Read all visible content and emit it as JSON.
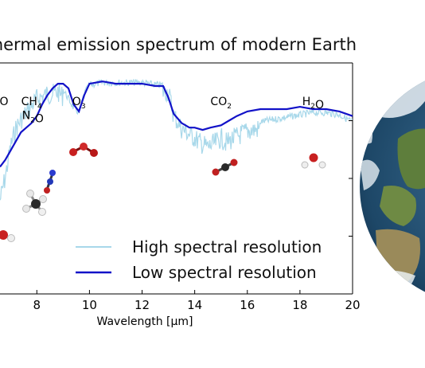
{
  "title": "Thermal emission spectrum of modern Earth",
  "chart_data": {
    "type": "line",
    "xlabel": "Wavelength [µm]",
    "ylabel": "",
    "xlim": [
      6.6,
      20
    ],
    "ylim": [
      0,
      1
    ],
    "xticks": [
      "8",
      "10",
      "12",
      "14",
      "16",
      "18",
      "20"
    ],
    "xtick_values": [
      8,
      10,
      12,
      14,
      16,
      18,
      20
    ],
    "grid": false,
    "legend_position": "bottom-right",
    "molecule_labels": [
      {
        "text": "O",
        "x": 6.75,
        "y": 0.9
      },
      {
        "text": "CH4",
        "x": 7.8,
        "y": 0.9
      },
      {
        "text": "N2O",
        "x": 7.85,
        "y": 0.84
      },
      {
        "text": "O3",
        "x": 9.6,
        "y": 0.9
      },
      {
        "text": "CO2",
        "x": 15.0,
        "y": 0.9
      },
      {
        "text": "H2O",
        "x": 18.5,
        "y": 0.9
      }
    ],
    "series": [
      {
        "name": "High spectral resolution",
        "color": "#a8d8ea",
        "x": [
          6.6,
          6.8,
          7.0,
          7.2,
          7.4,
          7.6,
          7.8,
          8.0,
          8.2,
          8.4,
          8.6,
          8.8,
          9.0,
          9.2,
          9.4,
          9.6,
          9.8,
          10.0,
          10.5,
          11.0,
          11.5,
          12.0,
          12.5,
          13.0,
          13.2,
          13.5,
          14.0,
          14.2,
          14.5,
          14.8,
          15.0,
          15.2,
          15.5,
          16.0,
          16.5,
          17.0,
          17.5,
          18.0,
          18.5,
          19.0,
          19.5,
          20.0
        ],
        "y": [
          0.45,
          0.55,
          0.68,
          0.76,
          0.8,
          0.83,
          0.86,
          0.89,
          0.9,
          0.91,
          0.91,
          0.92,
          0.9,
          0.86,
          0.82,
          0.8,
          0.88,
          0.92,
          0.93,
          0.93,
          0.93,
          0.93,
          0.92,
          0.92,
          0.82,
          0.76,
          0.72,
          0.7,
          0.68,
          0.7,
          0.72,
          0.7,
          0.72,
          0.75,
          0.76,
          0.77,
          0.78,
          0.79,
          0.8,
          0.8,
          0.79,
          0.76
        ]
      },
      {
        "name": "Low spectral resolution",
        "color": "#1212c8",
        "x": [
          6.6,
          6.8,
          7.0,
          7.2,
          7.4,
          7.6,
          7.8,
          8.0,
          8.2,
          8.4,
          8.6,
          8.8,
          9.0,
          9.2,
          9.4,
          9.6,
          9.8,
          10.0,
          10.5,
          11.0,
          11.5,
          12.0,
          12.5,
          12.8,
          13.0,
          13.2,
          13.5,
          13.8,
          14.0,
          14.3,
          14.6,
          15.0,
          15.3,
          15.6,
          16.0,
          16.5,
          17.0,
          17.5,
          18.0,
          18.5,
          19.0,
          19.5,
          20.0
        ],
        "y": [
          0.55,
          0.58,
          0.62,
          0.66,
          0.7,
          0.72,
          0.74,
          0.77,
          0.82,
          0.86,
          0.89,
          0.91,
          0.91,
          0.89,
          0.82,
          0.79,
          0.86,
          0.91,
          0.92,
          0.91,
          0.91,
          0.91,
          0.9,
          0.9,
          0.85,
          0.78,
          0.74,
          0.72,
          0.72,
          0.71,
          0.72,
          0.73,
          0.75,
          0.77,
          0.79,
          0.8,
          0.8,
          0.8,
          0.81,
          0.8,
          0.8,
          0.79,
          0.77
        ]
      }
    ]
  }
}
